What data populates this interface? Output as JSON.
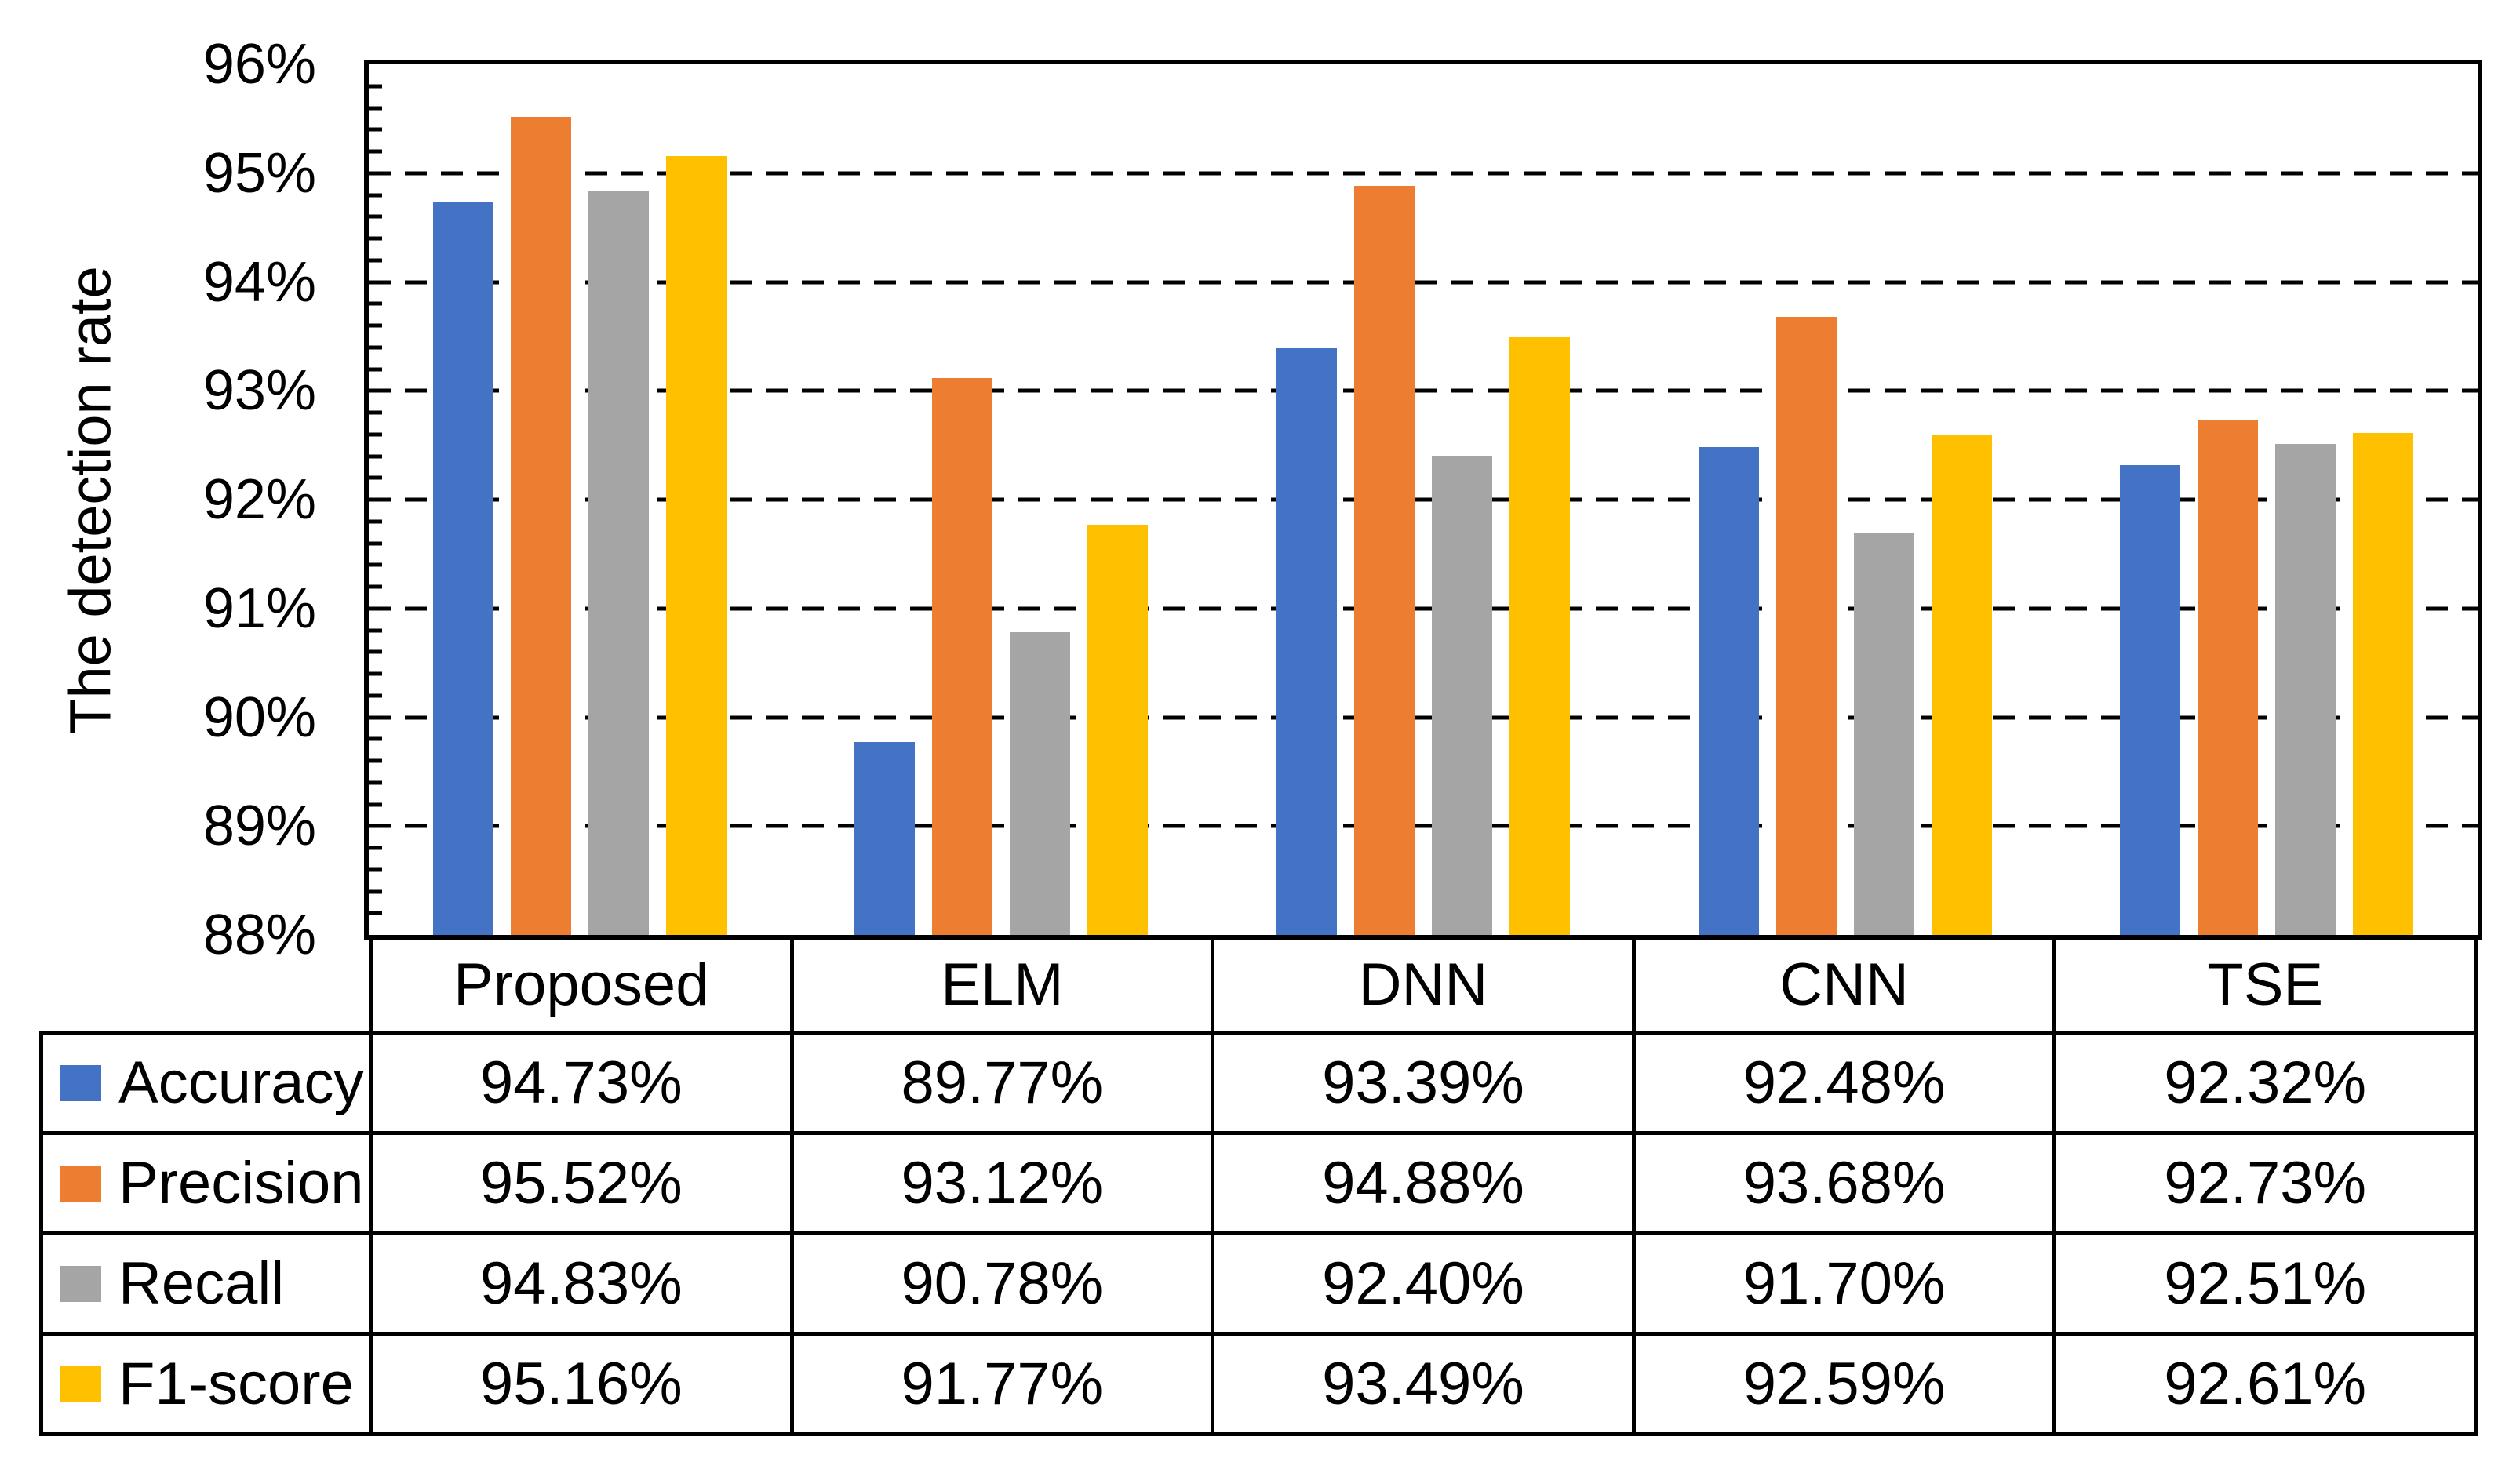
{
  "chart_data": {
    "type": "bar",
    "title": "",
    "ylabel": "The detection rate",
    "xlabel": "",
    "categories": [
      "Proposed",
      "ELM",
      "DNN",
      "CNN",
      "TSE"
    ],
    "series": [
      {
        "name": "Accuracy",
        "color": "#4472C4",
        "values": [
          94.73,
          89.77,
          93.39,
          92.48,
          92.32
        ],
        "display": [
          "94.73%",
          "89.77%",
          "93.39%",
          "92.48%",
          "92.32%"
        ]
      },
      {
        "name": "Precision",
        "color": "#ED7D31",
        "values": [
          95.52,
          93.12,
          94.88,
          93.68,
          92.73
        ],
        "display": [
          "95.52%",
          "93.12%",
          "94.88%",
          "93.68%",
          "92.73%"
        ]
      },
      {
        "name": "Recall",
        "color": "#A5A5A5",
        "values": [
          94.83,
          90.78,
          92.4,
          91.7,
          92.51
        ],
        "display": [
          "94.83%",
          "90.78%",
          "92.40%",
          "91.70%",
          "92.51%"
        ]
      },
      {
        "name": "F1-score",
        "color": "#FFC000",
        "values": [
          95.16,
          91.77,
          93.49,
          92.59,
          92.61
        ],
        "display": [
          "95.16%",
          "91.77%",
          "93.49%",
          "92.59%",
          "92.61%"
        ]
      }
    ],
    "ylim": [
      88,
      96
    ],
    "ytick_step": 1,
    "minor_tick_step": 0.2,
    "ytick_labels": [
      "88%",
      "89%",
      "90%",
      "91%",
      "92%",
      "93%",
      "94%",
      "95%",
      "96%"
    ],
    "gridlines": {
      "values": [
        89,
        90,
        91,
        92,
        93,
        94,
        95
      ],
      "style": "dashed"
    },
    "grid": true,
    "legend_position": "table-left",
    "plot_border_color": "#000000",
    "text_color": "#000000",
    "background_color": "#ffffff"
  }
}
